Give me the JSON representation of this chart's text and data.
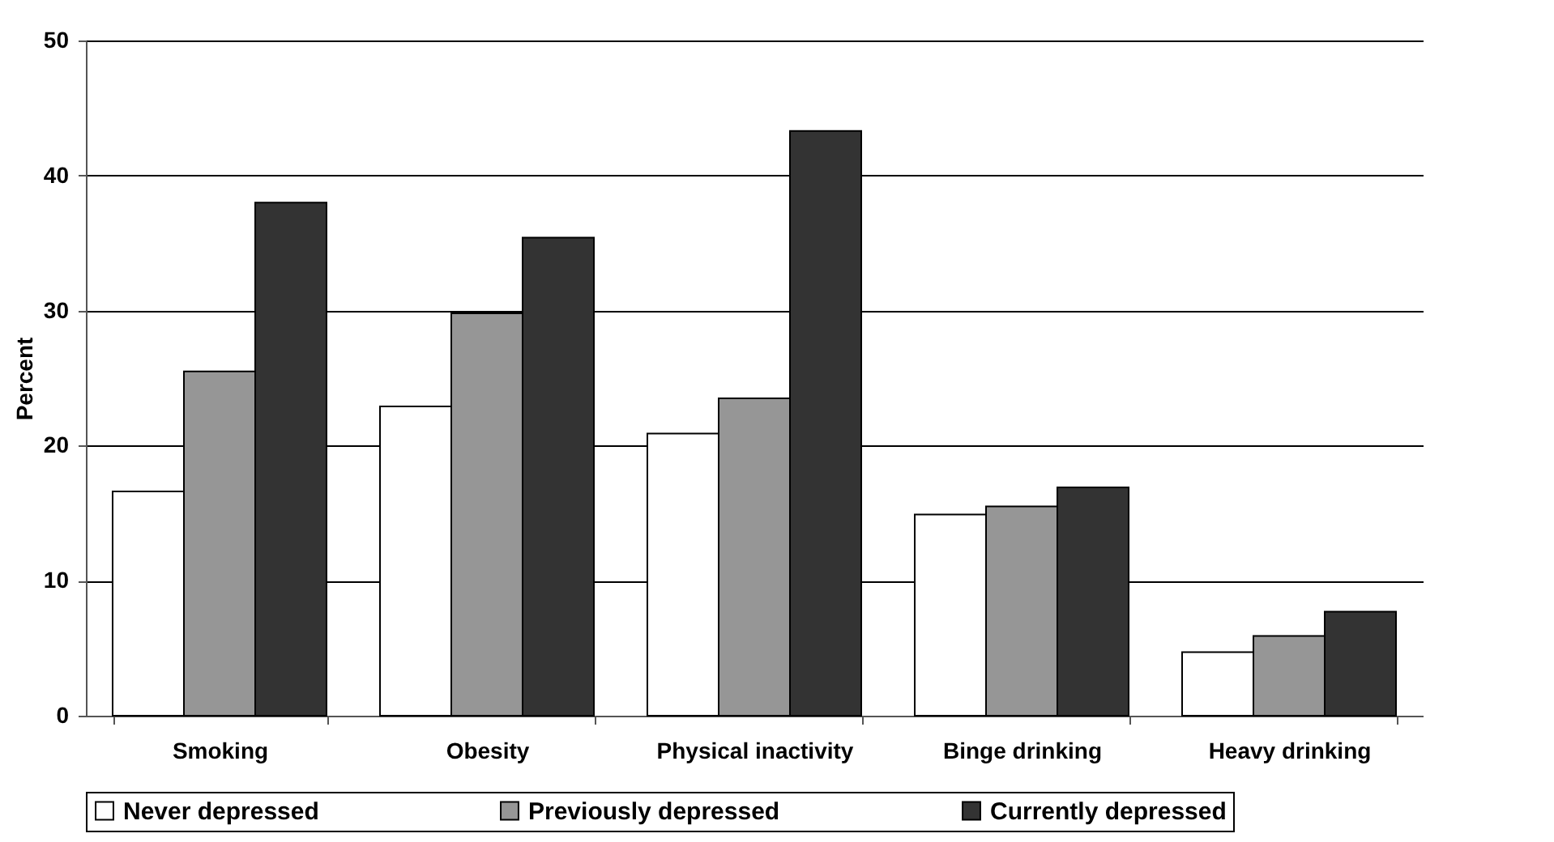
{
  "chart_data": {
    "type": "bar",
    "ylabel": "Percent",
    "categories": [
      "Smoking",
      "Obesity",
      "Physical inactivity",
      "Binge drinking",
      "Heavy drinking"
    ],
    "series": [
      {
        "name": "Never depressed",
        "color": "#ffffff",
        "values": [
          16.6,
          22.9,
          20.9,
          14.9,
          4.7
        ]
      },
      {
        "name": "Previously depressed",
        "color": "#969696",
        "values": [
          25.5,
          29.8,
          23.5,
          15.5,
          5.9
        ]
      },
      {
        "name": "Currently depressed",
        "color": "#333333",
        "values": [
          38.0,
          35.4,
          43.3,
          16.9,
          7.7
        ]
      }
    ],
    "ylim": [
      0,
      50
    ],
    "yticks": [
      0,
      10,
      20,
      30,
      40,
      50
    ],
    "grid": "y",
    "legend": "bottom"
  }
}
